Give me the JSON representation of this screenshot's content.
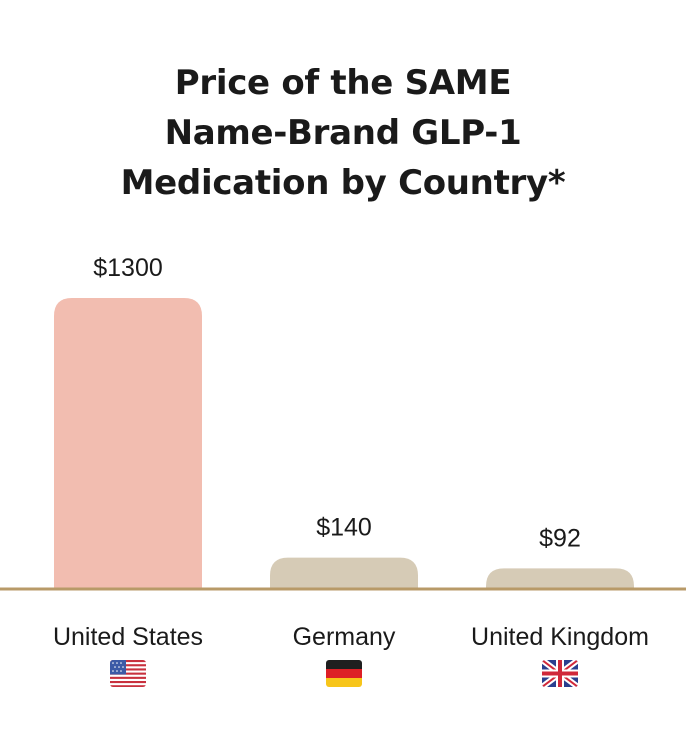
{
  "chart_data": {
    "type": "bar",
    "title_lines": [
      "Price of the SAME",
      "Name-Brand GLP-1",
      "Medication by Country*"
    ],
    "categories": [
      "United States",
      "Germany",
      "United Kingdom"
    ],
    "values": [
      1300,
      140,
      92
    ],
    "value_labels": [
      "$1300",
      "$140",
      "$92"
    ],
    "flags": [
      "us-flag-icon",
      "de-flag-icon",
      "gb-flag-icon"
    ],
    "colors": [
      "#f2bdb0",
      "#d6cbb6",
      "#d6cbb6"
    ],
    "axis_color": "#b89a68",
    "xlabel": "",
    "ylabel": "",
    "ylim": [
      0,
      1300
    ],
    "grid": false
  }
}
